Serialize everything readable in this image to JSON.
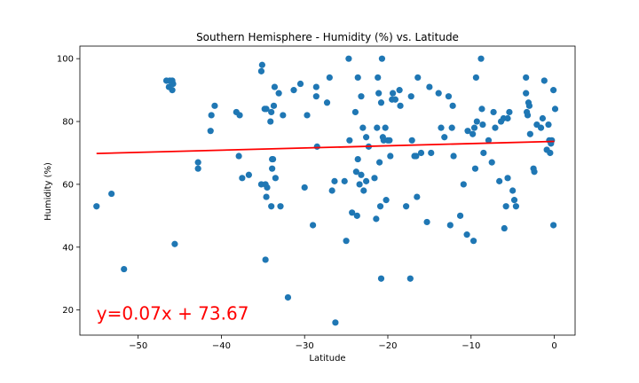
{
  "chart_data": {
    "type": "scatter",
    "title": "Southern Hemisphere - Humidity (%) vs. Latitude",
    "xlabel": "Latitude",
    "ylabel": "Humidity (%)",
    "xlim": [
      -57,
      2.5
    ],
    "ylim": [
      12,
      104
    ],
    "xticks": [
      -50,
      -40,
      -30,
      -20,
      -10,
      0
    ],
    "yticks": [
      20,
      40,
      60,
      80,
      100
    ],
    "grid": false,
    "point_color": "#1f77b4",
    "regression": {
      "equation": "y=0.07x + 73.67",
      "slope": 0.07,
      "intercept": 73.67,
      "x_range": [
        -55,
        0
      ],
      "color": "#ff0000",
      "label_color": "#ff0000"
    },
    "points": [
      [
        -55,
        53
      ],
      [
        -53.2,
        57
      ],
      [
        -51.7,
        33
      ],
      [
        -46.6,
        93
      ],
      [
        -46.2,
        93
      ],
      [
        -46.3,
        91
      ],
      [
        -45.9,
        93
      ],
      [
        -45.8,
        92
      ],
      [
        -45.9,
        90
      ],
      [
        -45.6,
        41
      ],
      [
        -42.8,
        67
      ],
      [
        -42.8,
        65
      ],
      [
        -41.3,
        77
      ],
      [
        -41.2,
        82
      ],
      [
        -40.8,
        85
      ],
      [
        -38.2,
        83
      ],
      [
        -37.8,
        82
      ],
      [
        -37.9,
        69
      ],
      [
        -37.5,
        62
      ],
      [
        -36.7,
        63
      ],
      [
        -35.2,
        60
      ],
      [
        -35.2,
        96
      ],
      [
        -35.1,
        98
      ],
      [
        -34.8,
        84
      ],
      [
        -34.6,
        84
      ],
      [
        -34.7,
        60
      ],
      [
        -34.6,
        56
      ],
      [
        -34.5,
        59
      ],
      [
        -34.7,
        36
      ],
      [
        -34.1,
        80
      ],
      [
        -34.0,
        83
      ],
      [
        -34.0,
        53
      ],
      [
        -33.9,
        68
      ],
      [
        -33.8,
        68
      ],
      [
        -33.9,
        65
      ],
      [
        -33.7,
        85
      ],
      [
        -33.6,
        91
      ],
      [
        -33.5,
        62
      ],
      [
        -33.1,
        89
      ],
      [
        -32.9,
        53
      ],
      [
        -32.6,
        82
      ],
      [
        -32,
        24
      ],
      [
        -31.3,
        90
      ],
      [
        -30.5,
        92
      ],
      [
        -30,
        59
      ],
      [
        -29.7,
        82
      ],
      [
        -29,
        47
      ],
      [
        -28.6,
        91
      ],
      [
        -28.6,
        88
      ],
      [
        -28.5,
        72
      ],
      [
        -27.3,
        86
      ],
      [
        -27,
        94
      ],
      [
        -26.7,
        58
      ],
      [
        -26.4,
        61
      ],
      [
        -26.3,
        16
      ],
      [
        -25.2,
        61
      ],
      [
        -25,
        42
      ],
      [
        -24.7,
        100
      ],
      [
        -24.6,
        74
      ],
      [
        -24.3,
        51
      ],
      [
        -23.9,
        83
      ],
      [
        -23.8,
        64
      ],
      [
        -23.7,
        50
      ],
      [
        -23.6,
        68
      ],
      [
        -23.6,
        94
      ],
      [
        -23.4,
        60
      ],
      [
        -23.2,
        63
      ],
      [
        -23.2,
        88
      ],
      [
        -23.0,
        78
      ],
      [
        -22.9,
        58
      ],
      [
        -22.6,
        61
      ],
      [
        -22.6,
        75
      ],
      [
        -22.3,
        72
      ],
      [
        -21.6,
        62
      ],
      [
        -21.4,
        49
      ],
      [
        -21.3,
        78
      ],
      [
        -21.2,
        94
      ],
      [
        -21.1,
        89
      ],
      [
        -21.0,
        67
      ],
      [
        -20.9,
        53
      ],
      [
        -20.8,
        86
      ],
      [
        -20.8,
        30
      ],
      [
        -20.7,
        100
      ],
      [
        -20.6,
        75
      ],
      [
        -20.5,
        74
      ],
      [
        -20.3,
        78
      ],
      [
        -20.2,
        55
      ],
      [
        -20.0,
        74
      ],
      [
        -19.8,
        74
      ],
      [
        -19.7,
        69
      ],
      [
        -19.5,
        87
      ],
      [
        -19.4,
        89
      ],
      [
        -19.1,
        87
      ],
      [
        -18.6,
        90
      ],
      [
        -18.5,
        85
      ],
      [
        -17.8,
        53
      ],
      [
        -17.3,
        30
      ],
      [
        -17.2,
        88
      ],
      [
        -17.1,
        74
      ],
      [
        -16.8,
        69
      ],
      [
        -16.6,
        69
      ],
      [
        -16.5,
        56
      ],
      [
        -16.4,
        94
      ],
      [
        -16,
        70
      ],
      [
        -15.3,
        48
      ],
      [
        -15.0,
        91
      ],
      [
        -14.8,
        70
      ],
      [
        -13.9,
        89
      ],
      [
        -13.6,
        78
      ],
      [
        -13.2,
        75
      ],
      [
        -12.7,
        88
      ],
      [
        -12.5,
        47
      ],
      [
        -12.3,
        78
      ],
      [
        -12.2,
        85
      ],
      [
        -12.1,
        69
      ],
      [
        -11.3,
        50
      ],
      [
        -10.9,
        60
      ],
      [
        -10.5,
        44
      ],
      [
        -10.4,
        77
      ],
      [
        -9.8,
        76
      ],
      [
        -9.7,
        42
      ],
      [
        -9.6,
        78
      ],
      [
        -9.5,
        65
      ],
      [
        -9.4,
        94
      ],
      [
        -9.3,
        80
      ],
      [
        -8.8,
        100
      ],
      [
        -8.7,
        84
      ],
      [
        -8.6,
        79
      ],
      [
        -8.5,
        70
      ],
      [
        -7.9,
        74
      ],
      [
        -7.5,
        67
      ],
      [
        -7.3,
        83
      ],
      [
        -7.1,
        78
      ],
      [
        -6.6,
        61
      ],
      [
        -6.4,
        80
      ],
      [
        -6.1,
        81
      ],
      [
        -6.0,
        46
      ],
      [
        -5.8,
        53
      ],
      [
        -5.6,
        62
      ],
      [
        -5.6,
        81
      ],
      [
        -5.4,
        83
      ],
      [
        -5.0,
        58
      ],
      [
        -4.8,
        55
      ],
      [
        -4.6,
        53
      ],
      [
        -3.4,
        94
      ],
      [
        -3.4,
        89
      ],
      [
        -3.3,
        83
      ],
      [
        -3.2,
        82
      ],
      [
        -3.1,
        86
      ],
      [
        -3.0,
        85
      ],
      [
        -2.9,
        76
      ],
      [
        -2.5,
        65
      ],
      [
        -2.4,
        64
      ],
      [
        -2.1,
        79
      ],
      [
        -1.6,
        78
      ],
      [
        -1.4,
        81
      ],
      [
        -1.2,
        93
      ],
      [
        -0.9,
        71
      ],
      [
        -0.7,
        79
      ],
      [
        -0.6,
        74
      ],
      [
        -0.5,
        70
      ],
      [
        -0.4,
        73
      ],
      [
        -0.3,
        74
      ],
      [
        -0.1,
        90
      ],
      [
        -0.1,
        47
      ],
      [
        0.1,
        84
      ]
    ]
  }
}
